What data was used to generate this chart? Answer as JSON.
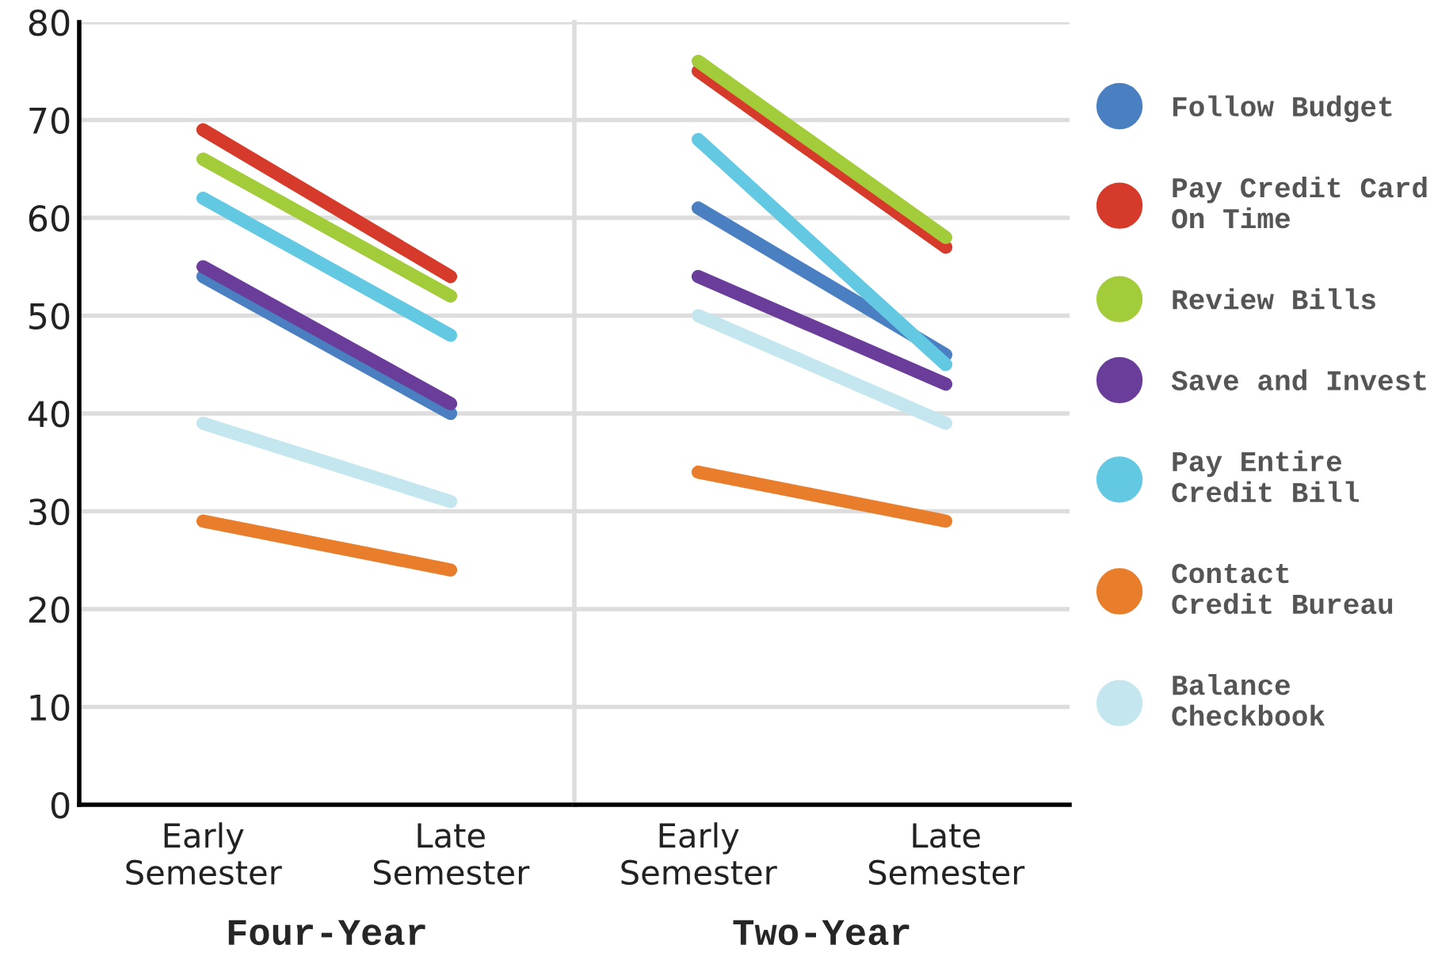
{
  "chart_data": [
    {
      "type": "line",
      "xlabel": "Four-Year",
      "categories": [
        "Early\nSemester",
        "Late\nSemester"
      ],
      "ylim": [
        0,
        80
      ],
      "yticks": [
        0,
        10,
        20,
        30,
        40,
        50,
        60,
        70,
        80
      ],
      "grid": "y",
      "marker": "none",
      "line_style": "solid",
      "series": [
        {
          "color": "#4a7fc1",
          "values": [
            54,
            40
          ]
        },
        {
          "color": "#d63a2a",
          "values": [
            69,
            54
          ]
        },
        {
          "color": "#a3cc3a",
          "values": [
            66,
            52
          ]
        },
        {
          "color": "#6a3d9a",
          "values": [
            55,
            41
          ]
        },
        {
          "color": "#63c9e3",
          "values": [
            62,
            48
          ]
        },
        {
          "color": "#e87d2c",
          "values": [
            29,
            24
          ]
        },
        {
          "color": "#c3e6ef",
          "values": [
            39,
            31
          ]
        }
      ]
    },
    {
      "type": "line",
      "xlabel": "Two-Year",
      "categories": [
        "Early\nSemester",
        "Late\nSemester"
      ],
      "ylim": [
        0,
        80
      ],
      "yticks": [
        0,
        10,
        20,
        30,
        40,
        50,
        60,
        70,
        80
      ],
      "grid": "y",
      "marker": "none",
      "line_style": "solid",
      "tick_labels": "x",
      "legend": "right",
      "series": [
        {
          "name": "Follow Budget",
          "color": "#4a7fc1",
          "values": [
            61,
            46
          ]
        },
        {
          "name": "Pay Credit Card\nOn Time",
          "color": "#d63a2a",
          "values": [
            75,
            57
          ]
        },
        {
          "name": "Review Bills",
          "color": "#a3cc3a",
          "values": [
            76,
            58
          ]
        },
        {
          "name": "Save and Invest",
          "color": "#6a3d9a",
          "values": [
            54,
            43
          ]
        },
        {
          "name": "Pay Entire\nCredit Bill",
          "color": "#63c9e3",
          "values": [
            68,
            45
          ]
        },
        {
          "name": "Contact\nCredit Bureau",
          "color": "#e87d2c",
          "values": [
            34,
            29
          ]
        },
        {
          "name": "Balance\nCheckbook",
          "color": "#c3e6ef",
          "values": [
            50,
            39
          ]
        }
      ]
    }
  ]
}
